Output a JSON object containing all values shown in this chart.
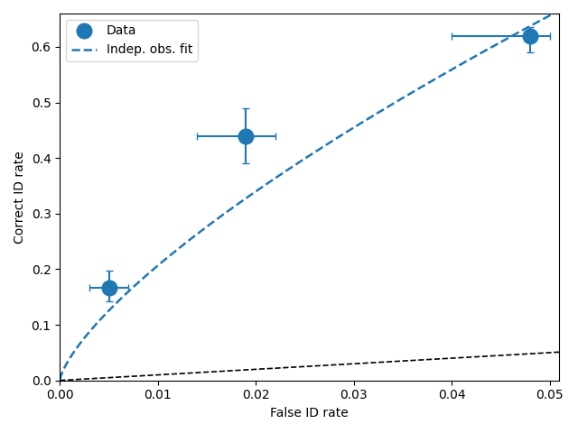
{
  "data_x": [
    0.005,
    0.019,
    0.048
  ],
  "data_y": [
    0.167,
    0.44,
    0.62
  ],
  "xerr_low": [
    0.002,
    0.005,
    0.008
  ],
  "xerr_high": [
    0.002,
    0.003,
    0.002
  ],
  "yerr_low": [
    0.025,
    0.05,
    0.03
  ],
  "yerr_high": [
    0.03,
    0.05,
    0.015
  ],
  "blue_curve_k": 5.64,
  "blue_curve_beta": 0.718,
  "black_curve_scale": 1.0,
  "x_range": [
    0.0,
    0.051
  ],
  "y_range": [
    0.0,
    0.66
  ],
  "xlabel": "False ID rate",
  "ylabel": "Correct ID rate",
  "legend_data_label": "Data",
  "legend_fit_label": "Indep. obs. fit",
  "blue_color": "#1f77b4",
  "black_color": "black",
  "marker_size": 12,
  "elinewidth": 1.5,
  "capsize": 3
}
